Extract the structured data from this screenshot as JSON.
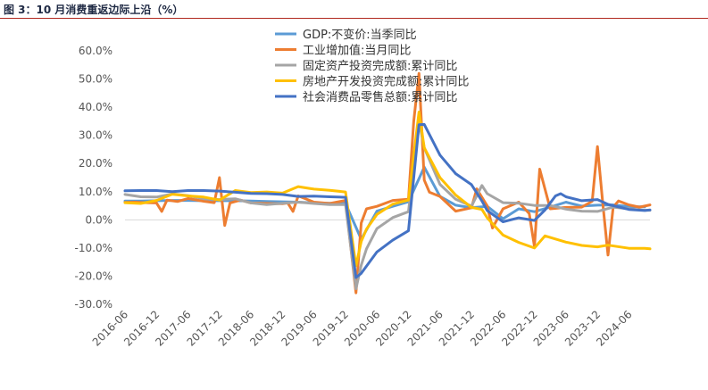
{
  "header": {
    "title": "图 3：10 月消费重返边际上沿（%）"
  },
  "colors": {
    "gdp": "#5b9bd5",
    "industry": "#ed7d31",
    "fixed_asset": "#a5a5a5",
    "real_estate": "#ffc000",
    "retail": "#4472c4",
    "title_rule": "#b0281f"
  },
  "chart_data": {
    "type": "line",
    "title": "",
    "xlabel": "",
    "ylabel": "",
    "ylim": [
      -30,
      60
    ],
    "yticks": [
      -30,
      -20,
      -10,
      0,
      10,
      20,
      30,
      40,
      50,
      60
    ],
    "ytick_labels": [
      "-30.0%",
      "-20.0%",
      "-10.0%",
      "0.0%",
      "10.0%",
      "20.0%",
      "30.0%",
      "40.0%",
      "50.0%",
      "60.0%"
    ],
    "xticks": [
      "2016-06",
      "2016-12",
      "2017-06",
      "2017-12",
      "2018-06",
      "2018-12",
      "2019-06",
      "2019-12",
      "2020-06",
      "2020-12",
      "2021-06",
      "2021-12",
      "2022-06",
      "2022-12",
      "2023-06",
      "2023-12",
      "2024-06"
    ],
    "x_start": "2016-06",
    "x_end": "2024-10",
    "grid": false,
    "legend_position": "top-center",
    "series": [
      {
        "name": "GDP:不变价:当季同比",
        "color_key": "gdp",
        "points": [
          [
            "2016-06",
            6.7
          ],
          [
            "2016-09",
            6.7
          ],
          [
            "2016-12",
            6.8
          ],
          [
            "2017-03",
            6.9
          ],
          [
            "2017-06",
            6.9
          ],
          [
            "2017-09",
            6.8
          ],
          [
            "2017-12",
            6.8
          ],
          [
            "2018-03",
            6.8
          ],
          [
            "2018-06",
            6.7
          ],
          [
            "2018-09",
            6.5
          ],
          [
            "2018-12",
            6.4
          ],
          [
            "2019-03",
            6.3
          ],
          [
            "2019-06",
            6.0
          ],
          [
            "2019-09",
            5.9
          ],
          [
            "2019-12",
            5.8
          ],
          [
            "2020-03",
            -6.9
          ],
          [
            "2020-06",
            3.1
          ],
          [
            "2020-09",
            4.8
          ],
          [
            "2020-12",
            6.4
          ],
          [
            "2021-03",
            18.7
          ],
          [
            "2021-06",
            8.3
          ],
          [
            "2021-09",
            5.2
          ],
          [
            "2021-12",
            4.3
          ],
          [
            "2022-03",
            4.8
          ],
          [
            "2022-06",
            0.4
          ],
          [
            "2022-09",
            3.9
          ],
          [
            "2022-12",
            2.9
          ],
          [
            "2023-03",
            4.5
          ],
          [
            "2023-06",
            6.3
          ],
          [
            "2023-09",
            4.9
          ],
          [
            "2023-12",
            5.2
          ],
          [
            "2024-03",
            5.3
          ],
          [
            "2024-06",
            4.7
          ],
          [
            "2024-09",
            4.6
          ]
        ]
      },
      {
        "name": "工业增加值:当月同比",
        "color_key": "industry",
        "points": [
          [
            "2016-06",
            6.2
          ],
          [
            "2016-08",
            6.3
          ],
          [
            "2016-10",
            6.1
          ],
          [
            "2016-12",
            6.0
          ],
          [
            "2017-01",
            3.0
          ],
          [
            "2017-02",
            7.0
          ],
          [
            "2017-04",
            6.5
          ],
          [
            "2017-06",
            7.6
          ],
          [
            "2017-09",
            6.6
          ],
          [
            "2017-11",
            6.1
          ],
          [
            "2017-12",
            15.0
          ],
          [
            "2018-01",
            -2.0
          ],
          [
            "2018-02",
            6.0
          ],
          [
            "2018-04",
            7.0
          ],
          [
            "2018-06",
            6.0
          ],
          [
            "2018-09",
            5.8
          ],
          [
            "2018-12",
            5.7
          ],
          [
            "2019-01",
            6.0
          ],
          [
            "2019-02",
            3.0
          ],
          [
            "2019-03",
            8.5
          ],
          [
            "2019-06",
            6.3
          ],
          [
            "2019-09",
            5.8
          ],
          [
            "2019-12",
            6.9
          ],
          [
            "2020-02",
            -25.9
          ],
          [
            "2020-03",
            -1.1
          ],
          [
            "2020-04",
            3.9
          ],
          [
            "2020-06",
            4.8
          ],
          [
            "2020-09",
            6.9
          ],
          [
            "2020-12",
            7.3
          ],
          [
            "2021-01",
            35.0
          ],
          [
            "2021-02",
            52.0
          ],
          [
            "2021-03",
            14.1
          ],
          [
            "2021-04",
            9.8
          ],
          [
            "2021-06",
            8.3
          ],
          [
            "2021-09",
            3.1
          ],
          [
            "2021-12",
            4.3
          ],
          [
            "2022-01",
            11.0
          ],
          [
            "2022-03",
            5.0
          ],
          [
            "2022-04",
            -2.9
          ],
          [
            "2022-06",
            3.9
          ],
          [
            "2022-09",
            6.3
          ],
          [
            "2022-11",
            2.2
          ],
          [
            "2022-12",
            -9.5
          ],
          [
            "2023-01",
            18.0
          ],
          [
            "2023-03",
            3.9
          ],
          [
            "2023-06",
            4.4
          ],
          [
            "2023-09",
            4.5
          ],
          [
            "2023-11",
            6.6
          ],
          [
            "2023-12",
            26.0
          ],
          [
            "2024-01",
            6.0
          ],
          [
            "2024-02",
            -12.5
          ],
          [
            "2024-03",
            4.5
          ],
          [
            "2024-04",
            6.7
          ],
          [
            "2024-06",
            5.3
          ],
          [
            "2024-08",
            4.5
          ],
          [
            "2024-10",
            5.3
          ]
        ]
      },
      {
        "name": "固定资产投资完成额:累计同比",
        "color_key": "fixed_asset",
        "points": [
          [
            "2016-06",
            9.0
          ],
          [
            "2016-09",
            8.2
          ],
          [
            "2016-12",
            8.1
          ],
          [
            "2017-03",
            9.2
          ],
          [
            "2017-06",
            8.6
          ],
          [
            "2017-09",
            7.5
          ],
          [
            "2017-12",
            7.2
          ],
          [
            "2018-03",
            7.5
          ],
          [
            "2018-06",
            6.0
          ],
          [
            "2018-09",
            5.4
          ],
          [
            "2018-12",
            5.9
          ],
          [
            "2019-03",
            6.3
          ],
          [
            "2019-06",
            5.8
          ],
          [
            "2019-09",
            5.4
          ],
          [
            "2019-12",
            5.4
          ],
          [
            "2020-02",
            -24.5
          ],
          [
            "2020-03",
            -16.1
          ],
          [
            "2020-04",
            -10.3
          ],
          [
            "2020-06",
            -3.1
          ],
          [
            "2020-09",
            0.8
          ],
          [
            "2020-12",
            2.9
          ],
          [
            "2021-02",
            35.0
          ],
          [
            "2021-03",
            25.6
          ],
          [
            "2021-06",
            12.6
          ],
          [
            "2021-09",
            7.3
          ],
          [
            "2021-12",
            4.9
          ],
          [
            "2022-02",
            12.2
          ],
          [
            "2022-03",
            9.3
          ],
          [
            "2022-06",
            6.1
          ],
          [
            "2022-09",
            5.9
          ],
          [
            "2022-12",
            5.1
          ],
          [
            "2023-03",
            5.1
          ],
          [
            "2023-06",
            3.8
          ],
          [
            "2023-09",
            3.1
          ],
          [
            "2023-12",
            3.0
          ],
          [
            "2024-03",
            4.5
          ],
          [
            "2024-06",
            3.9
          ],
          [
            "2024-09",
            3.4
          ],
          [
            "2024-10",
            3.4
          ]
        ]
      },
      {
        "name": "房地产开发投资完成额:累计同比",
        "color_key": "real_estate",
        "points": [
          [
            "2016-06",
            6.1
          ],
          [
            "2016-09",
            5.8
          ],
          [
            "2016-12",
            6.9
          ],
          [
            "2017-03",
            9.1
          ],
          [
            "2017-06",
            8.5
          ],
          [
            "2017-09",
            8.1
          ],
          [
            "2017-12",
            7.0
          ],
          [
            "2018-03",
            10.4
          ],
          [
            "2018-06",
            9.7
          ],
          [
            "2018-09",
            9.9
          ],
          [
            "2018-12",
            9.5
          ],
          [
            "2019-03",
            11.8
          ],
          [
            "2019-05",
            11.2
          ],
          [
            "2019-06",
            10.9
          ],
          [
            "2019-09",
            10.5
          ],
          [
            "2019-12",
            9.9
          ],
          [
            "2020-02",
            -16.3
          ],
          [
            "2020-03",
            -7.7
          ],
          [
            "2020-04",
            -3.3
          ],
          [
            "2020-06",
            1.9
          ],
          [
            "2020-09",
            5.6
          ],
          [
            "2020-12",
            7.0
          ],
          [
            "2021-02",
            38.3
          ],
          [
            "2021-03",
            25.6
          ],
          [
            "2021-06",
            15.0
          ],
          [
            "2021-09",
            8.8
          ],
          [
            "2021-12",
            4.4
          ],
          [
            "2022-02",
            3.7
          ],
          [
            "2022-03",
            0.7
          ],
          [
            "2022-06",
            -5.4
          ],
          [
            "2022-09",
            -8.0
          ],
          [
            "2022-12",
            -10.0
          ],
          [
            "2023-02",
            -5.7
          ],
          [
            "2023-06",
            -7.9
          ],
          [
            "2023-09",
            -9.1
          ],
          [
            "2023-12",
            -9.6
          ],
          [
            "2024-02",
            -9.0
          ],
          [
            "2024-06",
            -10.1
          ],
          [
            "2024-09",
            -10.1
          ],
          [
            "2024-10",
            -10.3
          ]
        ]
      },
      {
        "name": "社会消费品零售总额:累计同比",
        "color_key": "retail",
        "points": [
          [
            "2016-06",
            10.3
          ],
          [
            "2016-09",
            10.4
          ],
          [
            "2016-12",
            10.4
          ],
          [
            "2017-03",
            10.0
          ],
          [
            "2017-06",
            10.4
          ],
          [
            "2017-09",
            10.4
          ],
          [
            "2017-12",
            10.2
          ],
          [
            "2018-03",
            9.8
          ],
          [
            "2018-06",
            9.4
          ],
          [
            "2018-09",
            9.3
          ],
          [
            "2018-12",
            9.0
          ],
          [
            "2019-03",
            8.3
          ],
          [
            "2019-06",
            8.4
          ],
          [
            "2019-09",
            8.2
          ],
          [
            "2019-12",
            8.0
          ],
          [
            "2020-02",
            -20.5
          ],
          [
            "2020-03",
            -19.0
          ],
          [
            "2020-06",
            -11.4
          ],
          [
            "2020-09",
            -7.2
          ],
          [
            "2020-12",
            -3.9
          ],
          [
            "2021-02",
            33.8
          ],
          [
            "2021-03",
            33.9
          ],
          [
            "2021-06",
            23.0
          ],
          [
            "2021-09",
            16.4
          ],
          [
            "2021-12",
            12.5
          ],
          [
            "2022-02",
            6.7
          ],
          [
            "2022-03",
            3.3
          ],
          [
            "2022-06",
            -0.7
          ],
          [
            "2022-09",
            0.7
          ],
          [
            "2022-12",
            -0.2
          ],
          [
            "2023-02",
            3.5
          ],
          [
            "2023-04",
            8.5
          ],
          [
            "2023-05",
            9.3
          ],
          [
            "2023-06",
            8.2
          ],
          [
            "2023-09",
            6.8
          ],
          [
            "2023-12",
            7.2
          ],
          [
            "2024-02",
            5.5
          ],
          [
            "2024-06",
            3.7
          ],
          [
            "2024-09",
            3.3
          ],
          [
            "2024-10",
            3.5
          ]
        ]
      }
    ]
  }
}
